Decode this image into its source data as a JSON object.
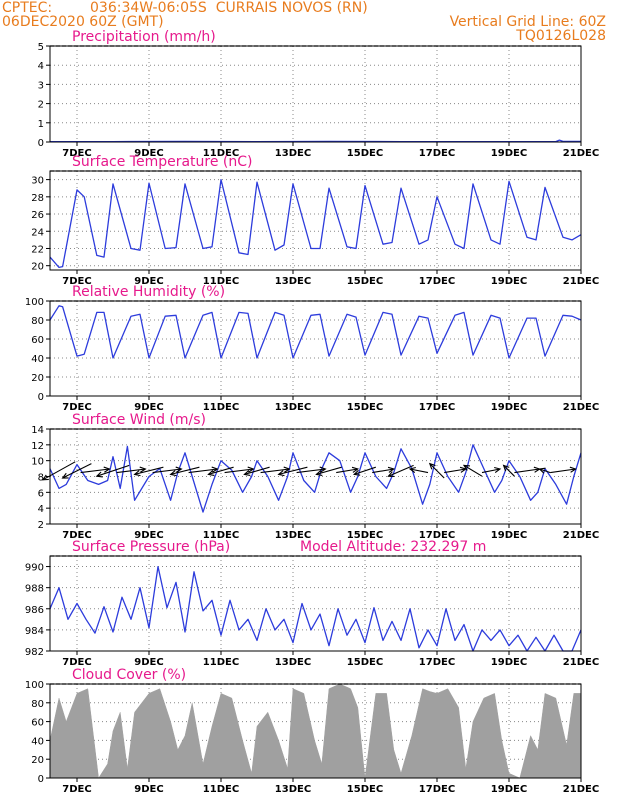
{
  "header": {
    "source": "CPTEC:",
    "location": "036:34W-06:05S  CURRAIS NOVOS (RN)",
    "date": "06DEC2020 60Z (GMT)",
    "grid_note": "Vertical Grid Line: 60Z",
    "code": "TQ0126L028"
  },
  "colors": {
    "line": "#2d3cdc",
    "title": "#e6198c",
    "header": "#e87c1e",
    "cloud": "#a0a0a0"
  },
  "x_tick_labels": [
    "7DEC",
    "9DEC",
    "11DEC",
    "13DEC",
    "15DEC",
    "17DEC",
    "19DEC",
    "21DEC"
  ],
  "chart_data": [
    {
      "type": "line",
      "title": "Precipitation (mm/h)",
      "ylim": [
        0,
        5
      ],
      "yticks": [
        0,
        1,
        2,
        3,
        4,
        5
      ],
      "xlim": [
        6.25,
        21
      ],
      "x": [
        6.25,
        8,
        10,
        12,
        14,
        16,
        18,
        20,
        20.3,
        20.4,
        20.5,
        21
      ],
      "values": [
        0.02,
        0.02,
        0.03,
        0.02,
        0.03,
        0.02,
        0.02,
        0.02,
        0.02,
        0.1,
        0.03,
        0.03
      ]
    },
    {
      "type": "line",
      "title": "Surface Temperature (nC)",
      "ylim": [
        19.5,
        31
      ],
      "yticks": [
        20,
        22,
        24,
        26,
        28,
        30
      ],
      "xlim": [
        6.25,
        21
      ],
      "x": [
        6.25,
        6.5,
        6.6,
        7.0,
        7.2,
        7.55,
        7.75,
        8.0,
        8.5,
        8.75,
        9.0,
        9.45,
        9.75,
        10.0,
        10.5,
        10.75,
        11.0,
        11.5,
        11.75,
        12.0,
        12.5,
        12.75,
        13.0,
        13.5,
        13.75,
        14.0,
        14.5,
        14.75,
        15.0,
        15.5,
        15.75,
        16.0,
        16.5,
        16.75,
        17.0,
        17.5,
        17.75,
        18.0,
        18.5,
        18.75,
        19.0,
        19.5,
        19.75,
        20.0,
        20.5,
        20.75,
        21.0
      ],
      "values": [
        21,
        19.8,
        19.9,
        28.8,
        28.0,
        21.2,
        21.0,
        29.5,
        22.0,
        21.8,
        29.6,
        22.0,
        22.1,
        29.5,
        22.0,
        22.2,
        30.0,
        21.5,
        21.3,
        29.7,
        21.8,
        22.4,
        29.5,
        22.0,
        22.0,
        29.0,
        22.2,
        22.0,
        29.3,
        22.5,
        22.7,
        29.0,
        22.5,
        23.0,
        28.0,
        22.5,
        22.0,
        29.5,
        23.0,
        22.5,
        29.8,
        23.3,
        23.0,
        29.1,
        23.3,
        23.0,
        23.6
      ]
    },
    {
      "type": "line",
      "title": "Relative Humidity (%)",
      "ylim": [
        0,
        100
      ],
      "yticks": [
        0,
        20,
        40,
        60,
        80,
        100
      ],
      "xlim": [
        6.25,
        21
      ],
      "x": [
        6.25,
        6.5,
        6.6,
        7.0,
        7.2,
        7.55,
        7.75,
        8.0,
        8.5,
        8.75,
        9.0,
        9.45,
        9.75,
        10.0,
        10.5,
        10.75,
        11.0,
        11.5,
        11.75,
        12.0,
        12.5,
        12.75,
        13.0,
        13.5,
        13.75,
        14.0,
        14.5,
        14.75,
        15.0,
        15.5,
        15.75,
        16.0,
        16.5,
        16.75,
        17.0,
        17.5,
        17.75,
        18.0,
        18.5,
        18.75,
        19.0,
        19.5,
        19.75,
        20.0,
        20.5,
        20.75,
        21.0
      ],
      "values": [
        80,
        95,
        94,
        42,
        44,
        88,
        88,
        40,
        84,
        86,
        40,
        84,
        85,
        40,
        85,
        88,
        40,
        88,
        87,
        40,
        88,
        85,
        40,
        85,
        86,
        42,
        86,
        83,
        43,
        88,
        86,
        43,
        84,
        82,
        45,
        85,
        88,
        43,
        85,
        82,
        40,
        82,
        82,
        42,
        85,
        84,
        80
      ]
    },
    {
      "type": "line",
      "title": "Surface Wind (m/s)",
      "ylim": [
        2,
        14
      ],
      "yticks": [
        2,
        4,
        6,
        8,
        10,
        12,
        14
      ],
      "xlim": [
        6.25,
        21
      ],
      "x": [
        6.25,
        6.5,
        6.7,
        7.0,
        7.3,
        7.6,
        7.85,
        8.0,
        8.2,
        8.4,
        8.6,
        9.0,
        9.3,
        9.6,
        9.8,
        10.0,
        10.2,
        10.5,
        10.75,
        11.0,
        11.3,
        11.6,
        11.85,
        12.0,
        12.3,
        12.6,
        12.85,
        13.0,
        13.3,
        13.6,
        13.8,
        14.0,
        14.3,
        14.6,
        14.8,
        15.0,
        15.3,
        15.6,
        15.8,
        16.0,
        16.3,
        16.6,
        16.8,
        17.0,
        17.3,
        17.6,
        17.8,
        18.0,
        18.3,
        18.6,
        18.8,
        19.0,
        19.3,
        19.6,
        19.8,
        20.0,
        20.3,
        20.6,
        20.8,
        21.0
      ],
      "values": [
        9,
        6.5,
        7,
        9.5,
        7.5,
        7.0,
        7.5,
        10.5,
        6.5,
        11.8,
        5,
        8,
        9,
        5,
        8.5,
        11,
        8,
        3.5,
        7,
        10,
        8.8,
        6,
        8,
        10,
        8,
        5,
        8,
        11,
        7.5,
        6,
        9,
        11,
        10,
        6,
        8,
        11,
        8,
        6.5,
        8.5,
        11.5,
        9,
        4.5,
        7,
        11,
        8,
        6,
        8.5,
        12,
        9,
        6,
        7.5,
        10,
        8,
        5,
        6,
        9,
        7,
        4.5,
        8,
        11
      ]
    },
    {
      "type": "line",
      "title": "Surface Pressure (hPa)",
      "annotation": "Model Altitude: 232.297  m",
      "ylim": [
        982,
        991
      ],
      "yticks": [
        982,
        984,
        986,
        988,
        990
      ],
      "xlim": [
        6.25,
        21
      ],
      "x": [
        6.25,
        6.5,
        6.75,
        7.0,
        7.25,
        7.5,
        7.75,
        8.0,
        8.25,
        8.5,
        8.75,
        9.0,
        9.25,
        9.5,
        9.75,
        10.0,
        10.25,
        10.5,
        10.75,
        11.0,
        11.25,
        11.5,
        11.75,
        12.0,
        12.25,
        12.5,
        12.75,
        13.0,
        13.25,
        13.5,
        13.75,
        14.0,
        14.25,
        14.5,
        14.75,
        15.0,
        15.25,
        15.5,
        15.75,
        16.0,
        16.25,
        16.5,
        16.75,
        17.0,
        17.25,
        17.5,
        17.75,
        18.0,
        18.25,
        18.5,
        18.75,
        19.0,
        19.25,
        19.5,
        19.75,
        20.0,
        20.25,
        20.5,
        20.75,
        21.0
      ],
      "values": [
        986,
        988.0,
        985.0,
        986.5,
        985.0,
        983.7,
        986.2,
        983.8,
        987.1,
        985.0,
        988.0,
        984.2,
        990.0,
        986.1,
        988.5,
        983.8,
        989.5,
        985.8,
        986.8,
        983.5,
        986.8,
        984.0,
        985.0,
        983.0,
        986.0,
        984.0,
        985.0,
        982.8,
        986.5,
        984.0,
        985.5,
        982.5,
        986.0,
        983.5,
        985.0,
        982.8,
        986.1,
        983.0,
        984.8,
        983.0,
        986.0,
        982.3,
        984.0,
        982.5,
        986.0,
        983.0,
        984.5,
        982.0,
        984.0,
        983.0,
        984.0,
        982.5,
        983.5,
        982.0,
        983.3,
        982.0,
        983.5,
        982.0,
        982.0,
        984.0
      ]
    },
    {
      "type": "area",
      "title": "Cloud Cover (%)",
      "ylim": [
        0,
        100
      ],
      "yticks": [
        0,
        20,
        40,
        60,
        80,
        100
      ],
      "xlim": [
        6.25,
        21
      ],
      "x": [
        6.25,
        6.5,
        6.7,
        7.0,
        7.3,
        7.6,
        7.85,
        8.0,
        8.2,
        8.4,
        8.6,
        9.0,
        9.3,
        9.6,
        9.8,
        10.0,
        10.2,
        10.5,
        10.75,
        11.0,
        11.3,
        11.6,
        11.85,
        12.0,
        12.3,
        12.6,
        12.85,
        13.0,
        13.3,
        13.6,
        13.8,
        14.0,
        14.3,
        14.6,
        14.8,
        15.0,
        15.3,
        15.6,
        15.8,
        16.0,
        16.3,
        16.6,
        16.8,
        17.0,
        17.3,
        17.6,
        17.8,
        18.0,
        18.3,
        18.6,
        18.8,
        19.0,
        19.3,
        19.6,
        19.8,
        20.0,
        20.3,
        20.6,
        20.8,
        21.0
      ],
      "values": [
        40,
        85,
        60,
        90,
        95,
        0,
        15,
        50,
        70,
        10,
        70,
        90,
        95,
        60,
        30,
        45,
        80,
        15,
        55,
        90,
        85,
        40,
        5,
        55,
        70,
        40,
        10,
        95,
        90,
        40,
        15,
        95,
        100,
        95,
        75,
        0,
        90,
        90,
        30,
        5,
        45,
        95,
        92,
        90,
        95,
        75,
        10,
        60,
        85,
        90,
        40,
        5,
        0,
        45,
        30,
        90,
        85,
        35,
        90,
        90
      ]
    }
  ],
  "wind_vectors": {
    "x": [
      6.5,
      7.0,
      7.5,
      8.0,
      8.5,
      9.0,
      9.5,
      10.0,
      10.5,
      11.0,
      11.5,
      12.0,
      12.5,
      13.0,
      13.5,
      14.0,
      14.5,
      15.0,
      15.5,
      16.0,
      16.5,
      17.0,
      17.5,
      18.0,
      18.5,
      19.0,
      19.5,
      20.0,
      20.5
    ],
    "u": [
      -9,
      -8,
      8,
      -9,
      8,
      -8,
      8,
      -8,
      8,
      -7,
      8,
      -7,
      8,
      -8,
      8,
      -7,
      6,
      -6,
      6,
      -7,
      -5,
      -4,
      6,
      -5,
      5,
      -3,
      7,
      -3,
      7
    ],
    "v": [
      -5,
      -4,
      1,
      -3,
      1,
      -2,
      1,
      -2,
      1,
      -2,
      1,
      -2,
      1,
      -2,
      1,
      -2,
      1,
      -2,
      1,
      -3,
      1,
      4,
      1,
      3,
      1,
      3,
      1,
      1,
      1
    ]
  }
}
